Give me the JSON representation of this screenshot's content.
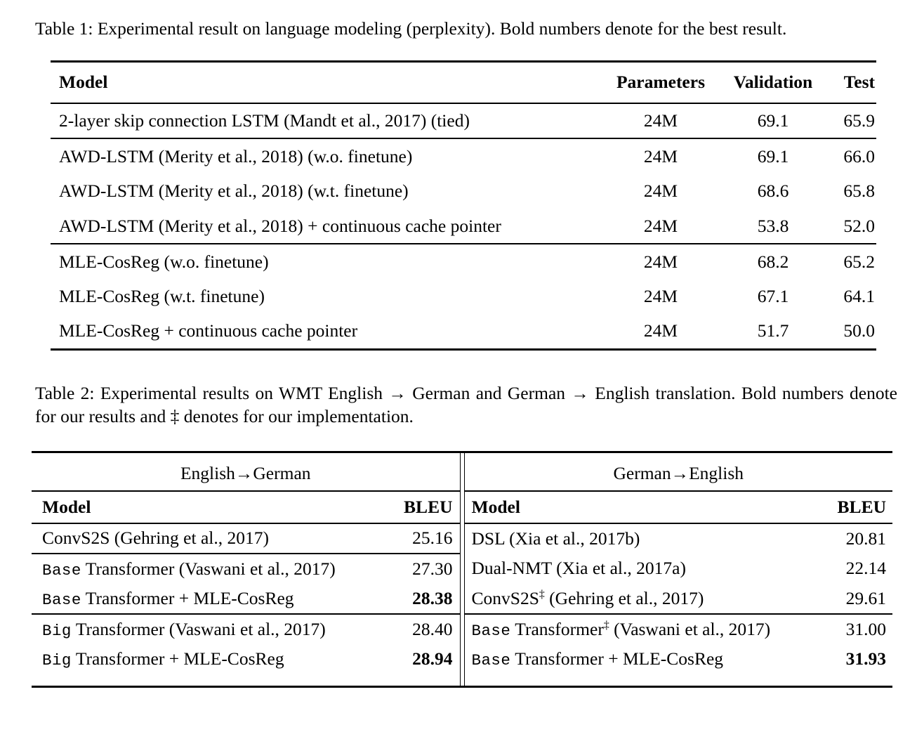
{
  "page": {
    "background_color": "#ffffff",
    "text_color": "#000000",
    "rule_color": "#000000"
  },
  "table1": {
    "caption": "Table 1: Experimental result on language modeling (perplexity). Bold numbers denote for the best result.",
    "columns": [
      "Model",
      "Parameters",
      "Validation",
      "Test"
    ],
    "rows": [
      {
        "model": "2-layer skip connection LSTM (Mandt et al., 2017) (tied)",
        "parameters": "24M",
        "validation": "69.1",
        "test": "65.9"
      },
      {
        "model": "AWD-LSTM (Merity et al., 2018) (w.o. finetune)",
        "parameters": "24M",
        "validation": "69.1",
        "test": "66.0"
      },
      {
        "model": "AWD-LSTM (Merity et al., 2018) (w.t. finetune)",
        "parameters": "24M",
        "validation": "68.6",
        "test": "65.8"
      },
      {
        "model": "AWD-LSTM (Merity et al., 2018) + continuous cache pointer",
        "parameters": "24M",
        "validation": "53.8",
        "test": "52.0"
      },
      {
        "model": "MLE-CosReg (w.o. finetune)",
        "parameters": "24M",
        "validation": "68.2",
        "test": "65.2"
      },
      {
        "model": "MLE-CosReg (w.t. finetune)",
        "parameters": "24M",
        "validation": "67.1",
        "test": "64.1"
      },
      {
        "model": "MLE-CosReg + continuous cache pointer",
        "parameters": "24M",
        "validation": "51.7",
        "test": "50.0"
      }
    ],
    "bold_cells_note": "row 7 Validation 51.7 and Test 50.0 are bold (best result)"
  },
  "table2": {
    "caption": "Table 2: Experimental results on WMT English → German and German → English translation. Bold numbers denote for our results and ‡ denotes for our implementation.",
    "left": {
      "span_header": "English→German",
      "columns": [
        "Model",
        "BLEU"
      ],
      "rows": [
        {
          "name": "ConvS2S (Gehring et al., 2017)",
          "bleu": "25.16"
        },
        {
          "prefix": "Base",
          "name": " Transformer (Vaswani et al., 2017)",
          "bleu": "27.30"
        },
        {
          "prefix": "Base",
          "name": " Transformer + MLE-CosReg",
          "bleu": "28.38"
        },
        {
          "prefix": "Big",
          "name": " Transformer (Vaswani et al., 2017)",
          "bleu": "28.40"
        },
        {
          "prefix": "Big",
          "name": " Transformer + MLE-CosReg",
          "bleu": "28.94"
        }
      ]
    },
    "right": {
      "span_header": "German→English",
      "columns": [
        "Model",
        "BLEU"
      ],
      "rows": [
        {
          "name": "DSL (Xia et al., 2017b)",
          "bleu": "20.81"
        },
        {
          "name": "Dual-NMT (Xia et al., 2017a)",
          "bleu": "22.14"
        },
        {
          "name": "ConvS2S",
          "sup": "‡",
          "rest": " (Gehring et al., 2017)",
          "bleu": "29.61"
        },
        {
          "prefix": "Base",
          "name": " Transformer",
          "sup": "‡",
          "rest": " (Vaswani et al., 2017)",
          "bleu": "31.00"
        },
        {
          "prefix": "Base",
          "name": " Transformer + MLE-CosReg",
          "bleu": "31.93"
        }
      ]
    }
  }
}
